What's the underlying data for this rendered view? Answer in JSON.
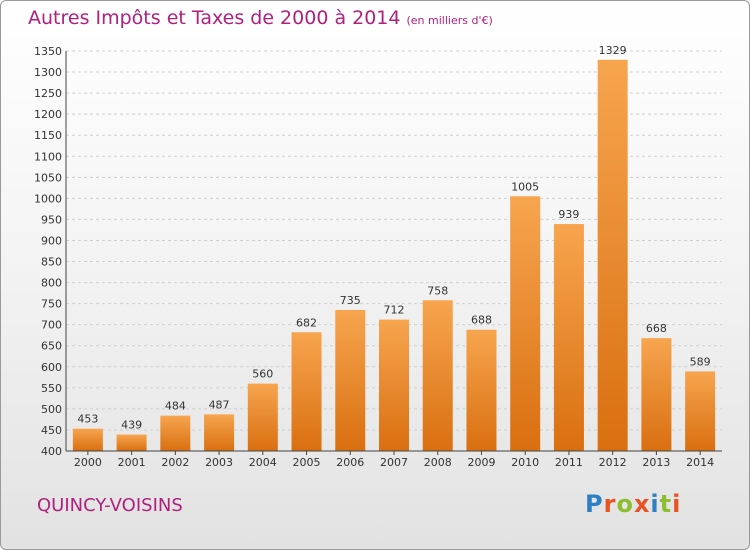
{
  "title": "Autres Impôts et Taxes de 2000 à 2014",
  "unit": "(en milliers d'€)",
  "city": "QUINCY-VOISINS",
  "logo": {
    "text": "Proxiti",
    "letter_colors": [
      "#2f7fc3",
      "#e8531f",
      "#8cbe2f",
      "#e8531f",
      "#2f7fc3",
      "#8cbe2f",
      "#e8531f"
    ]
  },
  "colors": {
    "accent": "#b0207f",
    "bar": "#f0902a"
  },
  "chart_data": {
    "type": "bar",
    "categories": [
      "2000",
      "2001",
      "2002",
      "2003",
      "2004",
      "2005",
      "2006",
      "2007",
      "2008",
      "2009",
      "2010",
      "2011",
      "2012",
      "2013",
      "2014"
    ],
    "values": [
      453,
      439,
      484,
      487,
      560,
      682,
      735,
      712,
      758,
      688,
      1005,
      939,
      1329,
      668,
      589
    ],
    "ylim": [
      400,
      1350
    ],
    "yticks": [
      400,
      450,
      500,
      550,
      600,
      650,
      700,
      750,
      800,
      850,
      900,
      950,
      1000,
      1050,
      1100,
      1150,
      1200,
      1250,
      1300,
      1350
    ],
    "grid": true,
    "xlabel": "",
    "ylabel": ""
  }
}
